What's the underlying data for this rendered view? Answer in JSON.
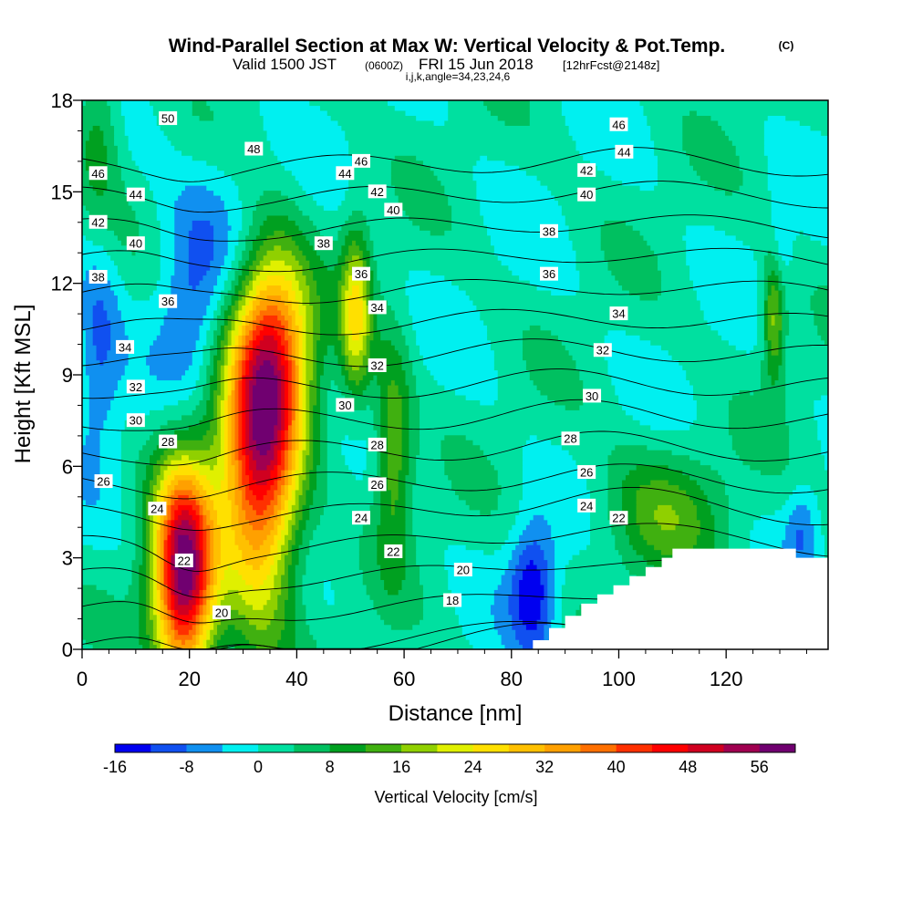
{
  "chart_data": {
    "type": "heatmap",
    "title": "Wind-Parallel Section at Max W: Vertical Velocity & Pot.Temp.",
    "title_mark": "(C)",
    "subtitle": {
      "valid": "Valid 1500 JST",
      "utc": "(0600Z)",
      "date": "FRI 15 Jun 2018",
      "fcst": "[12hrFcst@2148z]",
      "indices": "i,j,k,angle=34,23,24,6"
    },
    "xlabel": "Distance [nm]",
    "ylabel": "Height [Kft MSL]",
    "xlim": [
      0,
      139
    ],
    "ylim": [
      0,
      18
    ],
    "x_ticks": [
      0,
      20,
      40,
      60,
      80,
      100,
      120
    ],
    "y_ticks": [
      0,
      3,
      6,
      9,
      12,
      15,
      18
    ],
    "colorbar": {
      "label": "Vertical Velocity [cm/s]",
      "tick_labels": [
        "-16",
        "-8",
        "0",
        "8",
        "16",
        "24",
        "32",
        "40",
        "48",
        "56"
      ],
      "levels": [
        -16,
        -12,
        -8,
        -4,
        0,
        4,
        8,
        12,
        16,
        20,
        24,
        28,
        32,
        36,
        40,
        44,
        48,
        52,
        56,
        60
      ],
      "colors": [
        "#0000f0",
        "#1050f0",
        "#1090f0",
        "#00f0f0",
        "#00e0a0",
        "#00c060",
        "#00a020",
        "#40b010",
        "#90d000",
        "#e0f000",
        "#ffe000",
        "#ffc000",
        "#ffa000",
        "#ff7000",
        "#ff3000",
        "#ff0000",
        "#d00020",
        "#a00050",
        "#700070"
      ]
    },
    "vertical_velocity_features": [
      {
        "x": 19,
        "height": 2.5,
        "peak": 58,
        "spread_x": 4,
        "spread_h": 2.5
      },
      {
        "x": 33,
        "height": 6,
        "peak": 44,
        "spread_x": 5,
        "spread_h": 3.5
      },
      {
        "x": 36,
        "height": 10,
        "peak": 30,
        "spread_x": 5,
        "spread_h": 2.5
      },
      {
        "x": 51,
        "height": 11,
        "peak": 22,
        "spread_x": 2,
        "spread_h": 2
      },
      {
        "x": 58,
        "height": 6.5,
        "peak": 16,
        "spread_x": 2.5,
        "spread_h": 2.5
      },
      {
        "x": 108,
        "height": 4.5,
        "peak": 12,
        "spread_x": 8,
        "spread_h": 1.5
      },
      {
        "x": 129,
        "height": 11,
        "peak": 20,
        "spread_x": 1.5,
        "spread_h": 1.5
      },
      {
        "x": 3,
        "height": 17,
        "peak": 10,
        "spread_x": 3,
        "spread_h": 2
      },
      {
        "x": 84,
        "height": 2,
        "peak": -16,
        "spread_x": 3,
        "spread_h": 1.5
      },
      {
        "x": 3,
        "height": 10,
        "peak": -10,
        "spread_x": 3,
        "spread_h": 2.5
      },
      {
        "x": 20,
        "height": 11,
        "peak": -8,
        "spread_x": 4,
        "spread_h": 2
      },
      {
        "x": 26,
        "height": 14,
        "peak": -6,
        "spread_x": 8,
        "spread_h": 2
      },
      {
        "x": 130,
        "height": 13,
        "peak": -8,
        "spread_x": 1.5,
        "spread_h": 1.5
      },
      {
        "x": 134,
        "height": 4,
        "peak": -8,
        "spread_x": 2,
        "spread_h": 1
      }
    ],
    "potential_temperature": {
      "levels": [
        18,
        20,
        22,
        24,
        26,
        28,
        30,
        32,
        34,
        36,
        38,
        40,
        42,
        44,
        46,
        48,
        50
      ],
      "labels": [
        {
          "text": "50",
          "x": 16,
          "height": 17.4
        },
        {
          "text": "48",
          "x": 32,
          "height": 16.4
        },
        {
          "text": "46",
          "x": 3,
          "height": 15.6
        },
        {
          "text": "46",
          "x": 52,
          "height": 16.0
        },
        {
          "text": "46",
          "x": 100,
          "height": 17.2
        },
        {
          "text": "44",
          "x": 10,
          "height": 14.9
        },
        {
          "text": "44",
          "x": 49,
          "height": 15.6
        },
        {
          "text": "44",
          "x": 101,
          "height": 16.3
        },
        {
          "text": "42",
          "x": 3,
          "height": 14.0
        },
        {
          "text": "42",
          "x": 55,
          "height": 15.0
        },
        {
          "text": "42",
          "x": 94,
          "height": 15.7
        },
        {
          "text": "40",
          "x": 10,
          "height": 13.3
        },
        {
          "text": "40",
          "x": 58,
          "height": 14.4
        },
        {
          "text": "40",
          "x": 94,
          "height": 14.9
        },
        {
          "text": "38",
          "x": 3,
          "height": 12.2
        },
        {
          "text": "38",
          "x": 45,
          "height": 13.3
        },
        {
          "text": "38",
          "x": 87,
          "height": 13.7
        },
        {
          "text": "36",
          "x": 16,
          "height": 11.4
        },
        {
          "text": "36",
          "x": 52,
          "height": 12.3
        },
        {
          "text": "36",
          "x": 87,
          "height": 12.3
        },
        {
          "text": "34",
          "x": 8,
          "height": 9.9
        },
        {
          "text": "34",
          "x": 55,
          "height": 11.2
        },
        {
          "text": "34",
          "x": 100,
          "height": 11.0
        },
        {
          "text": "32",
          "x": 10,
          "height": 8.6
        },
        {
          "text": "32",
          "x": 55,
          "height": 9.3
        },
        {
          "text": "32",
          "x": 97,
          "height": 9.8
        },
        {
          "text": "30",
          "x": 10,
          "height": 7.5
        },
        {
          "text": "30",
          "x": 49,
          "height": 8.0
        },
        {
          "text": "30",
          "x": 95,
          "height": 8.3
        },
        {
          "text": "28",
          "x": 16,
          "height": 6.8
        },
        {
          "text": "28",
          "x": 55,
          "height": 6.7
        },
        {
          "text": "28",
          "x": 91,
          "height": 6.9
        },
        {
          "text": "26",
          "x": 4,
          "height": 5.5
        },
        {
          "text": "26",
          "x": 55,
          "height": 5.4
        },
        {
          "text": "26",
          "x": 94,
          "height": 5.8
        },
        {
          "text": "24",
          "x": 14,
          "height": 4.6
        },
        {
          "text": "24",
          "x": 52,
          "height": 4.3
        },
        {
          "text": "24",
          "x": 94,
          "height": 4.7
        },
        {
          "text": "22",
          "x": 19,
          "height": 2.9
        },
        {
          "text": "22",
          "x": 58,
          "height": 3.2
        },
        {
          "text": "22",
          "x": 100,
          "height": 4.3
        },
        {
          "text": "20",
          "x": 26,
          "height": 1.2
        },
        {
          "text": "20",
          "x": 71,
          "height": 2.6
        },
        {
          "text": "18",
          "x": 69,
          "height": 1.6
        }
      ]
    },
    "terrain_mask": [
      [
        80,
        0.0
      ],
      [
        84,
        0.3
      ],
      [
        87,
        0.7
      ],
      [
        90,
        1.1
      ],
      [
        93,
        1.5
      ],
      [
        96,
        1.8
      ],
      [
        99,
        2.1
      ],
      [
        102,
        2.4
      ],
      [
        105,
        2.7
      ],
      [
        108,
        3.0
      ],
      [
        110,
        3.3
      ],
      [
        133,
        3.3
      ],
      [
        133,
        3.0
      ],
      [
        139,
        3.0
      ]
    ],
    "grid": false
  }
}
